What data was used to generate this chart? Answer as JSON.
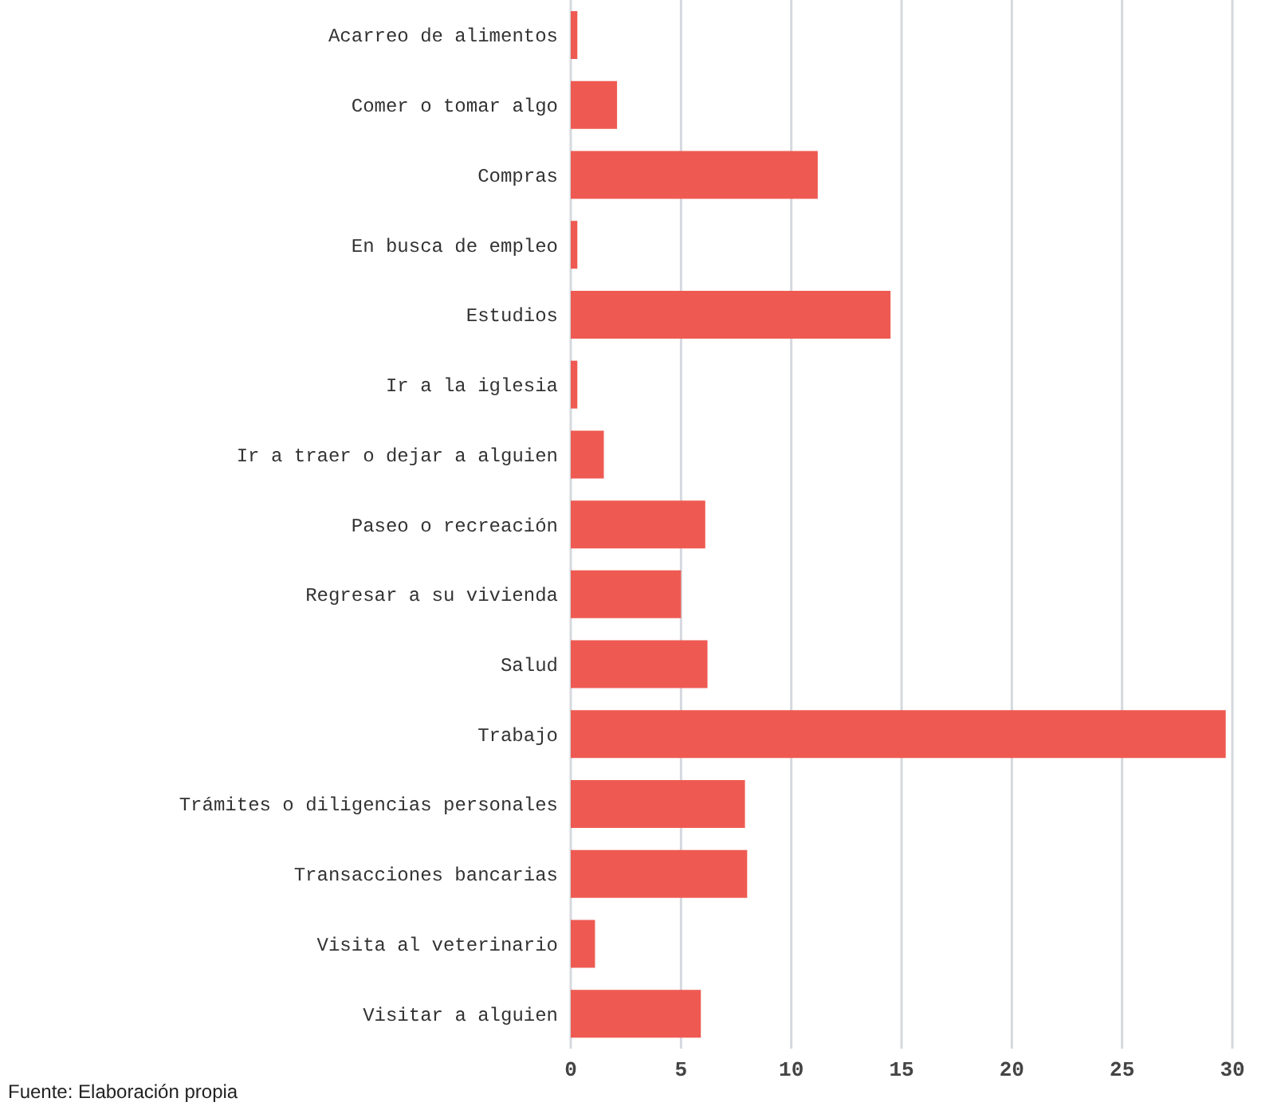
{
  "chart_data": {
    "type": "bar",
    "orientation": "horizontal",
    "categories": [
      "Acarreo de alimentos",
      "Comer o tomar algo",
      "Compras",
      "En busca de empleo",
      "Estudios",
      "Ir a la iglesia",
      "Ir a traer o dejar a alguien",
      "Paseo o recreación",
      "Regresar a su vivienda",
      "Salud",
      "Trabajo",
      "Trámites o diligencias personales",
      "Transacciones bancarias",
      "Visita al veterinario",
      "Visitar a alguien"
    ],
    "values": [
      0.3,
      2.1,
      11.2,
      0.3,
      14.5,
      0.3,
      1.5,
      6.1,
      5.0,
      6.2,
      29.7,
      7.9,
      8.0,
      1.1,
      5.9
    ],
    "color": "#ee5a52",
    "xlim": [
      0,
      30
    ],
    "xticks": [
      0,
      5,
      10,
      15,
      20,
      25,
      30
    ],
    "grid": "x",
    "annotations": [
      "Fuente: Elaboración propia"
    ]
  }
}
